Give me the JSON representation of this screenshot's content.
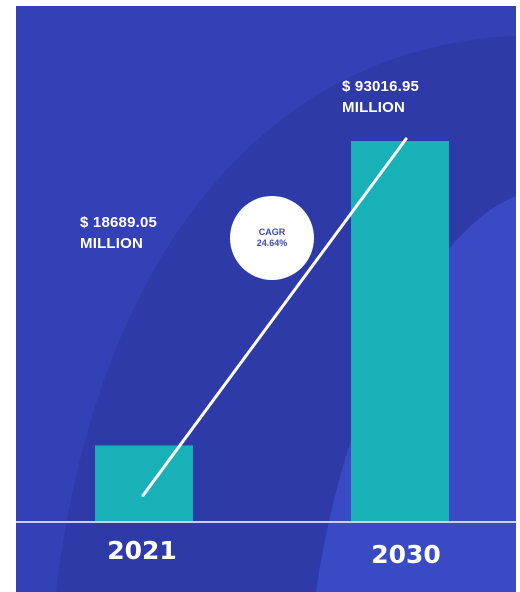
{
  "colors": {
    "background": "#3340b6",
    "background_arc": "#2f3aa9",
    "inner_arc": "#3a49c4",
    "bar": "#18b1b8",
    "trend_line": "#ffffff",
    "baseline": "#c9cff0",
    "text": "#ffffff",
    "badge_text": "#3c4ab4"
  },
  "cagr": {
    "label": "CAGR",
    "value": "24.64%"
  },
  "chart_data": {
    "type": "bar",
    "categories": [
      "2021",
      "2030"
    ],
    "values": [
      18689.05,
      93016.95
    ],
    "unit": "$ million",
    "value_labels": [
      {
        "line1": "$ 18689.05",
        "line2": "MILLION"
      },
      {
        "line1": "$ 93016.95",
        "line2": "MILLION"
      }
    ],
    "trend_line": true,
    "title": "",
    "xlabel": "",
    "ylabel": ""
  }
}
